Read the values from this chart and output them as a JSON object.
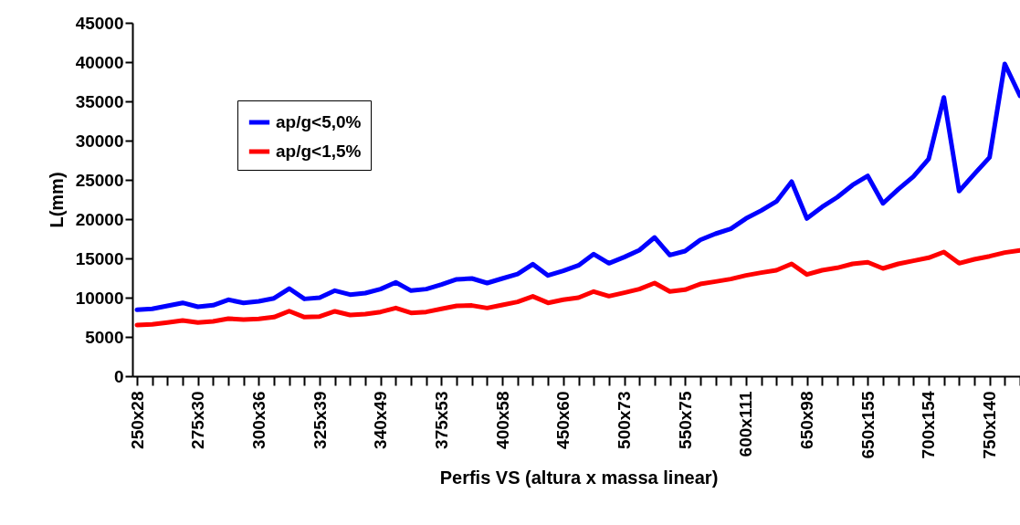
{
  "chart_data": {
    "type": "line",
    "xlabel": "Perfis VS (altura x massa linear)",
    "ylabel": "L(mm)",
    "categories": [
      "250x28",
      null,
      null,
      null,
      "275x30",
      null,
      null,
      null,
      "300x36",
      null,
      null,
      null,
      "325x39",
      null,
      null,
      null,
      "340x49",
      null,
      null,
      null,
      "375x53",
      null,
      null,
      null,
      "400x58",
      null,
      null,
      null,
      "450x60",
      null,
      null,
      null,
      "500x73",
      null,
      null,
      null,
      "550x75",
      null,
      null,
      null,
      "600x111",
      null,
      null,
      null,
      "650x98",
      null,
      null,
      null,
      "650x155",
      null,
      null,
      null,
      "700x154",
      null,
      null,
      null,
      "750x140",
      null,
      null
    ],
    "series": [
      {
        "name": "ap/g<5,0%",
        "color": "#0000ff",
        "values": [
          8450,
          8570,
          8950,
          9340,
          8840,
          9030,
          9730,
          9340,
          9530,
          9920,
          11160,
          9840,
          10000,
          10890,
          10390,
          10580,
          11090,
          11940,
          10890,
          11090,
          11670,
          12330,
          12440,
          11860,
          12440,
          13020,
          14260,
          12830,
          13410,
          14110,
          15540,
          14380,
          15160,
          16050,
          17670,
          15430,
          15930,
          17360,
          18140,
          18760,
          20080,
          21090,
          22250,
          24770,
          20080,
          21550,
          22790,
          24340,
          25500,
          22010,
          23800,
          25430,
          27670,
          35500,
          23570,
          25740,
          27870,
          39770,
          35700
        ]
      },
      {
        "name": "ap/g<1,5%",
        "color": "#ff0000",
        "values": [
          6510,
          6590,
          6820,
          7090,
          6820,
          6980,
          7330,
          7210,
          7290,
          7520,
          8290,
          7520,
          7600,
          8260,
          7790,
          7910,
          8180,
          8680,
          8060,
          8180,
          8570,
          8950,
          9000,
          8680,
          9070,
          9460,
          10160,
          9340,
          9730,
          10000,
          10780,
          10190,
          10620,
          11090,
          11860,
          10780,
          11010,
          11740,
          12050,
          12370,
          12830,
          13180,
          13490,
          14300,
          12950,
          13490,
          13800,
          14300,
          14500,
          13720,
          14300,
          14690,
          15080,
          15810,
          14380,
          14880,
          15270,
          15740,
          16010
        ]
      }
    ],
    "ylim": [
      0,
      45000
    ],
    "yticks": [
      0,
      5000,
      10000,
      15000,
      20000,
      25000,
      30000,
      35000,
      40000,
      45000
    ],
    "grid": false,
    "legend": "top left",
    "line_style": "solid",
    "marker": "none"
  }
}
